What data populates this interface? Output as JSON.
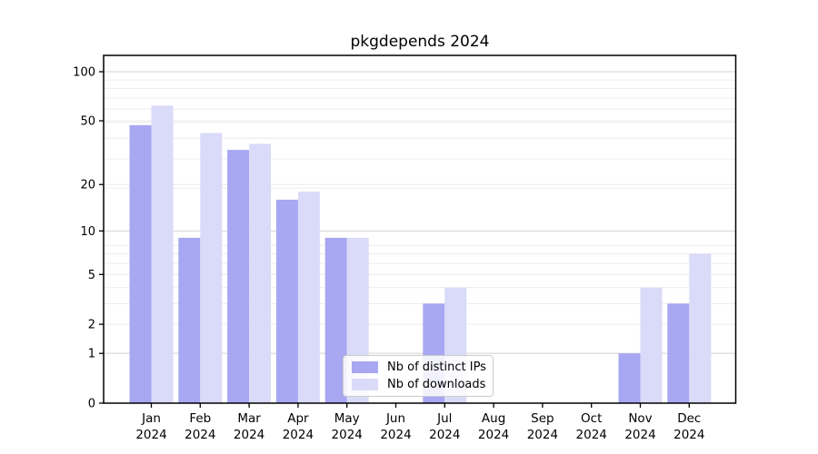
{
  "chart_data": {
    "type": "bar",
    "title": "pkgdepends 2024",
    "categories": [
      "Jan",
      "Feb",
      "Mar",
      "Apr",
      "May",
      "Jun",
      "Jul",
      "Aug",
      "Sep",
      "Oct",
      "Nov",
      "Dec"
    ],
    "category_year": "2024",
    "series": [
      {
        "name": "Nb of distinct IPs",
        "color": "#a7a7f2",
        "values": [
          47,
          9,
          33,
          16,
          9,
          0,
          3,
          0,
          0,
          0,
          1,
          3
        ]
      },
      {
        "name": "Nb of downloads",
        "color": "#dadaf9",
        "values": [
          62,
          42,
          36,
          18,
          9,
          0,
          4,
          0,
          0,
          0,
          4,
          7
        ]
      }
    ],
    "yscale": "log1p",
    "yticks": [
      0,
      1,
      2,
      5,
      10,
      20,
      50,
      100
    ],
    "ylim": [
      0,
      125
    ],
    "grid": "horizontal",
    "legend_position": "lower-center",
    "colors": {
      "axis": "#000000",
      "grid_major": "#d4d4d4",
      "grid_minor": "#ececec",
      "background": "#ffffff"
    }
  }
}
